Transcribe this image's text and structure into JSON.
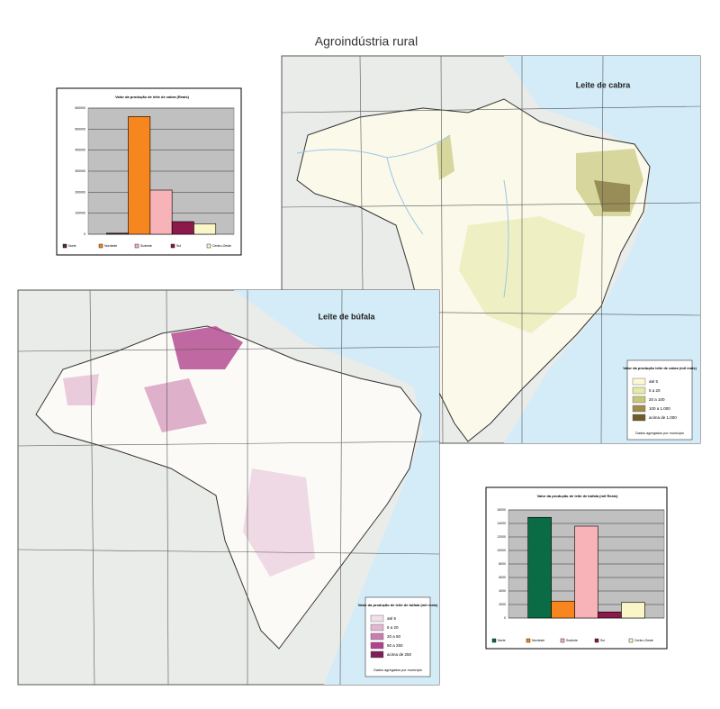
{
  "title": "Agroindústria rural",
  "maps": [
    {
      "title": "Leite de cabra",
      "legend": {
        "title": "Valor da produção leite de cabra (mil reais)",
        "items": [
          {
            "label": "até 5",
            "color": "#fbf8d2"
          },
          {
            "label": "5 a 20",
            "color": "#e6e9a8"
          },
          {
            "label": "20 a 100",
            "color": "#c8c77a"
          },
          {
            "label": "100 a 1.000",
            "color": "#a08d4a"
          },
          {
            "label": "acima de 1.000",
            "color": "#6e5a2a"
          }
        ],
        "note": "Dados agregados por município"
      }
    },
    {
      "title": "Leite de búfala",
      "legend": {
        "title": "Valor da produção de leite de búfala (mil reais)",
        "items": [
          {
            "label": "até 5",
            "color": "#f1dfe9"
          },
          {
            "label": "5 a 20",
            "color": "#e2b7d1"
          },
          {
            "label": "20 a 50",
            "color": "#c97fae"
          },
          {
            "label": "50 a 250",
            "color": "#b0448c"
          },
          {
            "label": "acima de 250",
            "color": "#7d1f5a"
          }
        ],
        "note": "Dados agregados por município"
      }
    }
  ],
  "chart_data": [
    {
      "type": "bar",
      "title": "Valor da produção de leite de cabra (Reais)",
      "categories": [
        "Norte",
        "Nordeste",
        "Sudeste",
        "Sul",
        "Centro-Oeste"
      ],
      "values": [
        5000,
        560000,
        210000,
        60000,
        50000
      ],
      "colors": [
        "#5a2a3a",
        "#f7861e",
        "#f7b3b8",
        "#8b1a4a",
        "#fbf6c8"
      ],
      "ylim": [
        0,
        600000
      ],
      "yticks": [
        0,
        100000,
        200000,
        300000,
        400000,
        500000,
        600000
      ],
      "grid": true
    },
    {
      "type": "bar",
      "title": "Valor da produção de leite de búfala (mil Reais)",
      "categories": [
        "Norte",
        "Nordeste",
        "Sudeste",
        "Sul",
        "Centro-Oeste"
      ],
      "values": [
        14900,
        2500,
        13600,
        900,
        2300
      ],
      "colors": [
        "#0b6b45",
        "#f7861e",
        "#f7b3b8",
        "#8b1a4a",
        "#fbf6c8"
      ],
      "ylim": [
        0,
        16000
      ],
      "yticks": [
        0,
        2000,
        4000,
        6000,
        8000,
        10000,
        12000,
        14000,
        16000
      ],
      "grid": true
    }
  ]
}
